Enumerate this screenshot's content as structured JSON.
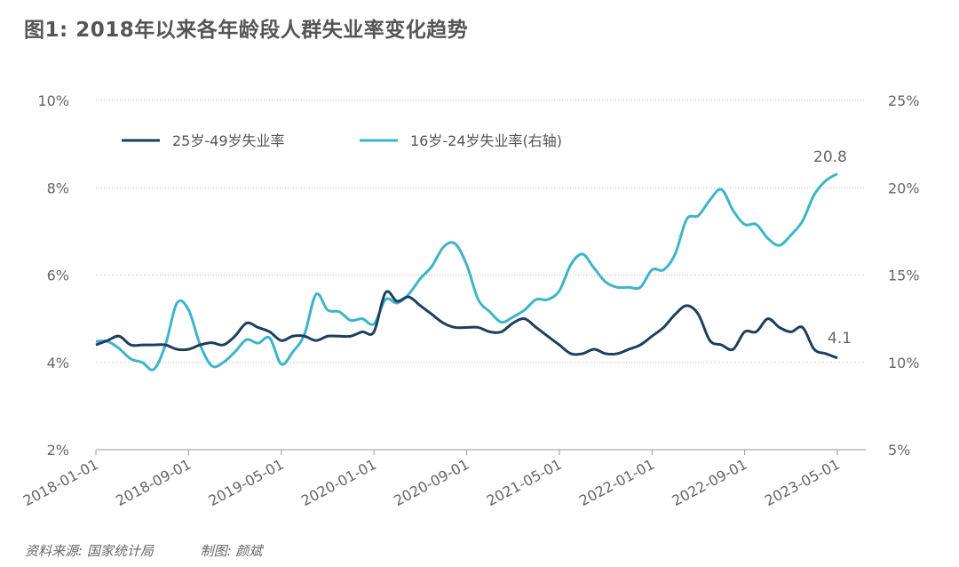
{
  "title": "图1: 2018年以来各年龄段人群失业率变化趋势",
  "footer": {
    "source": "资料来源: 国家统计局",
    "author": "制图: 颜斌"
  },
  "chart_data": {
    "type": "line",
    "title": "图1: 2018年以来各年龄段人群失业率变化趋势",
    "x": [
      "2018-01",
      "2018-02",
      "2018-03",
      "2018-04",
      "2018-05",
      "2018-06",
      "2018-07",
      "2018-08",
      "2018-09",
      "2018-10",
      "2018-11",
      "2018-12",
      "2019-01",
      "2019-02",
      "2019-03",
      "2019-04",
      "2019-05",
      "2019-06",
      "2019-07",
      "2019-08",
      "2019-09",
      "2019-10",
      "2019-11",
      "2019-12",
      "2020-01",
      "2020-02",
      "2020-03",
      "2020-04",
      "2020-05",
      "2020-06",
      "2020-07",
      "2020-08",
      "2020-09",
      "2020-10",
      "2020-11",
      "2020-12",
      "2021-01",
      "2021-02",
      "2021-03",
      "2021-04",
      "2021-05",
      "2021-06",
      "2021-07",
      "2021-08",
      "2021-09",
      "2021-10",
      "2021-11",
      "2021-12",
      "2022-01",
      "2022-02",
      "2022-03",
      "2022-04",
      "2022-05",
      "2022-06",
      "2022-07",
      "2022-08",
      "2022-09",
      "2022-10",
      "2022-11",
      "2022-12",
      "2023-01",
      "2023-02",
      "2023-03",
      "2023-04",
      "2023-05"
    ],
    "x_tick_labels": [
      "2018-01-01",
      "2018-09-01",
      "2019-05-01",
      "2020-01-01",
      "2020-09-01",
      "2021-05-01",
      "2022-01-01",
      "2022-09-01",
      "2023-05-01"
    ],
    "y_left": {
      "range": [
        2,
        10
      ],
      "ticks": [
        "2%",
        "4%",
        "6%",
        "8%",
        "10%"
      ]
    },
    "y_right": {
      "range": [
        5,
        25
      ],
      "ticks": [
        "5%",
        "10%",
        "15%",
        "20%",
        "25%"
      ]
    },
    "grid": true,
    "legend": "top-left",
    "series": [
      {
        "name": "25岁-49岁失业率",
        "axis": "left",
        "color": "#1d3f5c",
        "values": [
          4.4,
          4.5,
          4.6,
          4.4,
          4.4,
          4.4,
          4.4,
          4.3,
          4.3,
          4.4,
          4.45,
          4.4,
          4.6,
          4.9,
          4.8,
          4.7,
          4.5,
          4.6,
          4.6,
          4.5,
          4.6,
          4.6,
          4.6,
          4.7,
          4.7,
          5.6,
          5.4,
          5.5,
          5.3,
          5.1,
          4.9,
          4.8,
          4.8,
          4.8,
          4.7,
          4.7,
          4.9,
          5.0,
          4.8,
          4.6,
          4.4,
          4.2,
          4.2,
          4.3,
          4.2,
          4.2,
          4.3,
          4.4,
          4.6,
          4.8,
          5.1,
          5.3,
          5.1,
          4.5,
          4.4,
          4.3,
          4.7,
          4.7,
          5.0,
          4.8,
          4.7,
          4.8,
          4.3,
          4.2,
          4.1
        ],
        "end_label": "4.1"
      },
      {
        "name": "16岁-24岁失业率(右轴)",
        "axis": "right",
        "color": "#3db4cc",
        "values": [
          11.2,
          11.2,
          10.8,
          10.2,
          10.0,
          9.6,
          11.0,
          13.4,
          13.0,
          11.0,
          9.8,
          10.0,
          10.6,
          11.3,
          11.1,
          11.4,
          9.9,
          10.6,
          11.6,
          13.9,
          13.0,
          12.9,
          12.4,
          12.5,
          12.2,
          13.6,
          13.4,
          13.9,
          14.8,
          15.5,
          16.6,
          16.8,
          15.6,
          13.6,
          12.9,
          12.3,
          12.6,
          13.0,
          13.6,
          13.6,
          14.1,
          15.6,
          16.2,
          15.4,
          14.6,
          14.3,
          14.3,
          14.3,
          15.3,
          15.3,
          16.2,
          18.2,
          18.4,
          19.3,
          19.9,
          18.7,
          17.9,
          17.9,
          17.1,
          16.7,
          17.3,
          18.1,
          19.6,
          20.4,
          20.8
        ],
        "end_label": "20.8"
      }
    ]
  }
}
